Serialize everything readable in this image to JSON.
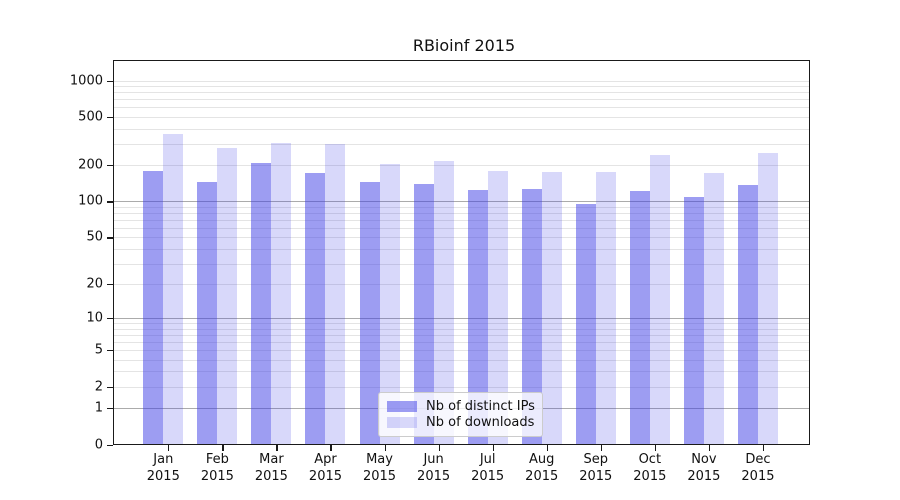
{
  "chart_data": {
    "type": "bar",
    "title": "RBioinf 2015",
    "categories": [
      "Jan",
      "Feb",
      "Mar",
      "Apr",
      "May",
      "Jun",
      "Jul",
      "Aug",
      "Sep",
      "Oct",
      "Nov",
      "Dec"
    ],
    "x_year_label": "2015",
    "series": [
      {
        "name": "Nb of distinct IPs",
        "color": "rgba(60,60,230,0.5)",
        "values": [
          178,
          144,
          210,
          171,
          146,
          140,
          125,
          127,
          96,
          123,
          109,
          136
        ]
      },
      {
        "name": "Nb of downloads",
        "color": "rgba(60,60,230,0.2)",
        "values": [
          360,
          277,
          307,
          299,
          203,
          218,
          179,
          176,
          176,
          242,
          173,
          253
        ]
      }
    ],
    "y_axis": {
      "scale": "log10(1+v)",
      "tick_labels": [
        "1000",
        "500",
        "200",
        "100",
        "50",
        "20",
        "10",
        "5",
        "2",
        "1",
        "0"
      ],
      "tick_values": [
        1000,
        500,
        200,
        100,
        50,
        20,
        10,
        5,
        2,
        1,
        0
      ],
      "major_grid_values": [
        100,
        10,
        1
      ],
      "minor_grid_values": [
        1000,
        900,
        800,
        700,
        600,
        500,
        400,
        300,
        200,
        90,
        80,
        70,
        60,
        50,
        40,
        30,
        20,
        9,
        8,
        7,
        6,
        5,
        4,
        3,
        2
      ]
    },
    "legend_position": "bottom-center",
    "grid": "horizontal",
    "colors": {
      "major_grid": "#ababab",
      "minor_grid": "#e4e4e4",
      "axis": "#1a1a1a",
      "text": "#111111",
      "legend_border": "#cccccc",
      "legend_bg": "rgba(255,255,255,0.8)"
    }
  }
}
